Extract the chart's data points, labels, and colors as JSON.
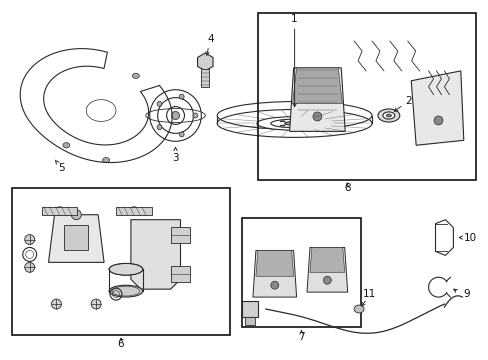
{
  "bg_color": "#ffffff",
  "line_color": "#2a2a2a",
  "box_color": "#111111",
  "fig_width": 4.89,
  "fig_height": 3.6,
  "dpi": 100,
  "label_fontsize": 7.5,
  "label_color": "#111111"
}
